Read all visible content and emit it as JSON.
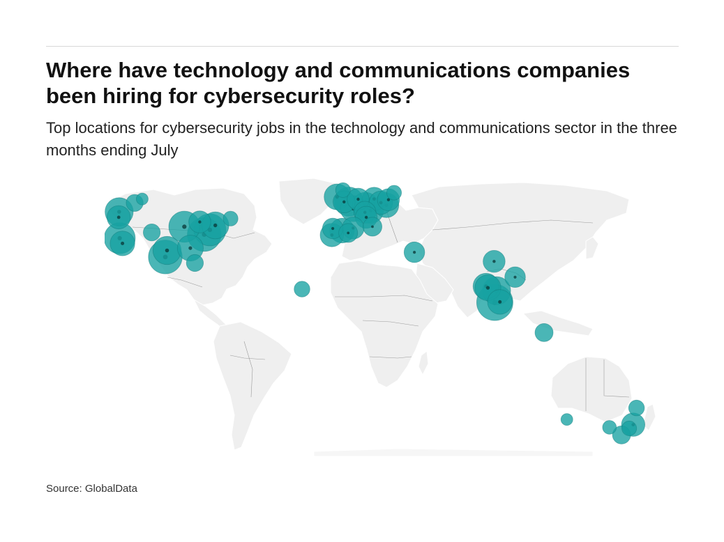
{
  "header": {
    "title": "Where have technology and communications companies been hiring for cybersecurity roles?",
    "subtitle": "Top locations for cybersecurity jobs in the technology and communications sector in the three months ending July"
  },
  "footer": {
    "source": "Source: GlobalData"
  },
  "map": {
    "colors": {
      "land": "#efefef",
      "bubble": "#17a2a2",
      "bubble_core": "#0a3535"
    },
    "bubbles": [
      {
        "lon": -122.3,
        "lat": 47.6,
        "size": 0.55
      },
      {
        "lon": -122.5,
        "lat": 45.5,
        "size": 0.35
      },
      {
        "lon": -114.0,
        "lat": 51.0,
        "size": 0.15
      },
      {
        "lon": -110.0,
        "lat": 52.5,
        "size": 0.05
      },
      {
        "lon": -122.0,
        "lat": 37.5,
        "size": 0.7
      },
      {
        "lon": -120.5,
        "lat": 35.5,
        "size": 0.4
      },
      {
        "lon": -104.9,
        "lat": 39.7,
        "size": 0.15
      },
      {
        "lon": -97.7,
        "lat": 30.3,
        "size": 0.85
      },
      {
        "lon": -96.8,
        "lat": 32.8,
        "size": 0.55
      },
      {
        "lon": -87.6,
        "lat": 41.9,
        "size": 0.7
      },
      {
        "lon": -84.4,
        "lat": 33.7,
        "size": 0.45
      },
      {
        "lon": -82.0,
        "lat": 28.0,
        "size": 0.15
      },
      {
        "lon": -77.0,
        "lat": 38.9,
        "size": 0.85
      },
      {
        "lon": -74.0,
        "lat": 40.7,
        "size": 0.75
      },
      {
        "lon": -71.1,
        "lat": 42.4,
        "size": 0.5
      },
      {
        "lon": -79.4,
        "lat": 43.7,
        "size": 0.3
      },
      {
        "lon": -63.0,
        "lat": 45.0,
        "size": 0.1
      },
      {
        "lon": -25.0,
        "lat": 18.0,
        "size": 0.12
      },
      {
        "lon": -6.3,
        "lat": 53.3,
        "size": 0.45
      },
      {
        "lon": -3.2,
        "lat": 55.9,
        "size": 0.1
      },
      {
        "lon": -0.1,
        "lat": 51.5,
        "size": 0.6
      },
      {
        "lon": -2.6,
        "lat": 51.4,
        "size": 0.3
      },
      {
        "lon": 2.3,
        "lat": 48.8,
        "size": 0.45
      },
      {
        "lon": 4.9,
        "lat": 52.4,
        "size": 0.3
      },
      {
        "lon": 8.7,
        "lat": 50.1,
        "size": 0.45
      },
      {
        "lon": 11.5,
        "lat": 48.1,
        "size": 0.45
      },
      {
        "lon": 13.4,
        "lat": 52.5,
        "size": 0.35
      },
      {
        "lon": 8.5,
        "lat": 47.4,
        "size": 0.3
      },
      {
        "lon": 17.0,
        "lat": 51.1,
        "size": 0.35
      },
      {
        "lon": 19.9,
        "lat": 50.1,
        "size": 0.4
      },
      {
        "lon": 21.0,
        "lat": 52.2,
        "size": 0.3
      },
      {
        "lon": 24.0,
        "lat": 54.9,
        "size": 0.1
      },
      {
        "lon": 9.2,
        "lat": 45.5,
        "size": 0.3
      },
      {
        "lon": 12.5,
        "lat": 41.9,
        "size": 0.2
      },
      {
        "lon": 2.2,
        "lat": 41.4,
        "size": 0.3
      },
      {
        "lon": -3.7,
        "lat": 40.4,
        "size": 0.4
      },
      {
        "lon": -9.1,
        "lat": 38.7,
        "size": 0.35
      },
      {
        "lon": -8.6,
        "lat": 41.2,
        "size": 0.25
      },
      {
        "lon": -0.4,
        "lat": 39.5,
        "size": 0.2
      },
      {
        "lon": 34.8,
        "lat": 32.1,
        "size": 0.25
      },
      {
        "lon": 77.2,
        "lat": 28.6,
        "size": 0.3
      },
      {
        "lon": 88.4,
        "lat": 22.6,
        "size": 0.25
      },
      {
        "lon": 72.9,
        "lat": 19.1,
        "size": 0.45
      },
      {
        "lon": 78.5,
        "lat": 17.4,
        "size": 0.55
      },
      {
        "lon": 73.9,
        "lat": 18.5,
        "size": 0.45
      },
      {
        "lon": 80.3,
        "lat": 13.1,
        "size": 0.4
      },
      {
        "lon": 77.6,
        "lat": 12.9,
        "size": 1.0
      },
      {
        "lon": 103.8,
        "lat": 1.35,
        "size": 0.18
      },
      {
        "lon": 115.9,
        "lat": -31.9,
        "size": 0.05
      },
      {
        "lon": 138.6,
        "lat": -34.9,
        "size": 0.08
      },
      {
        "lon": 145.0,
        "lat": -37.8,
        "size": 0.18
      },
      {
        "lon": 149.1,
        "lat": -35.3,
        "size": 0.1
      },
      {
        "lon": 151.2,
        "lat": -33.9,
        "size": 0.35
      },
      {
        "lon": 153.0,
        "lat": -27.5,
        "size": 0.12
      }
    ]
  }
}
